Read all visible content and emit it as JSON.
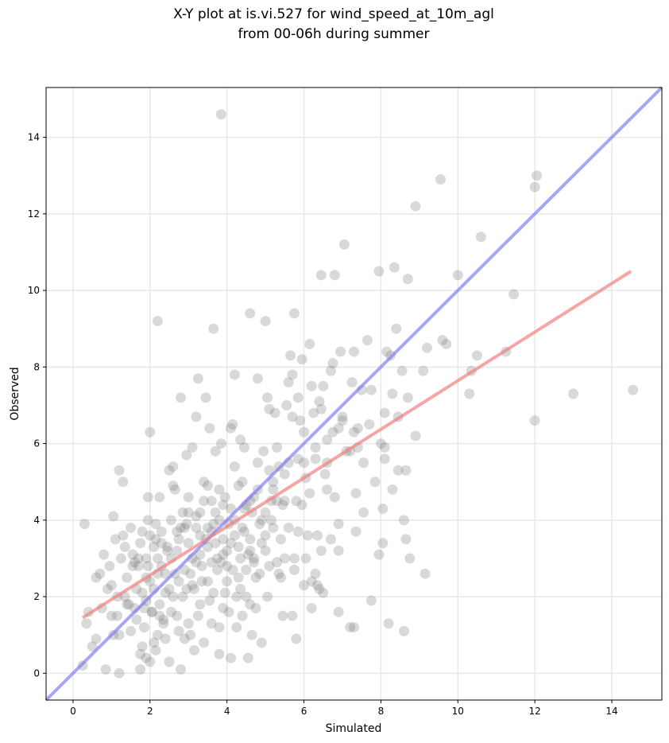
{
  "chart_data": {
    "type": "scatter",
    "title_lines": [
      "X-Y plot at is.vi.527 for wind_speed_at_10m_agl",
      "from 00-06h during summer"
    ],
    "xlabel": "Simulated",
    "ylabel": "Observed",
    "xlim": [
      -0.7,
      15.3
    ],
    "ylim": [
      -0.7,
      15.3
    ],
    "xticks": [
      0,
      2,
      4,
      6,
      8,
      10,
      12,
      14
    ],
    "yticks": [
      0,
      2,
      4,
      6,
      8,
      10,
      12,
      14
    ],
    "grid": true,
    "point_color": "#808080",
    "identity_line": {
      "color": "#7777ee",
      "from": [
        -0.7,
        -0.7
      ],
      "to": [
        15.3,
        15.3
      ]
    },
    "fit_line": {
      "color": "#f08080",
      "from": [
        0.25,
        1.45
      ],
      "to": [
        14.5,
        10.5
      ]
    },
    "points": [
      [
        3.85,
        14.6
      ],
      [
        2.2,
        9.2
      ],
      [
        3.65,
        9.0
      ],
      [
        4.6,
        9.4
      ],
      [
        5.0,
        9.2
      ],
      [
        5.75,
        9.4
      ],
      [
        6.45,
        10.4
      ],
      [
        6.8,
        10.4
      ],
      [
        7.05,
        11.2
      ],
      [
        7.95,
        10.5
      ],
      [
        8.35,
        10.6
      ],
      [
        8.7,
        10.3
      ],
      [
        8.9,
        12.2
      ],
      [
        9.55,
        12.9
      ],
      [
        10.0,
        10.4
      ],
      [
        10.6,
        11.4
      ],
      [
        12.0,
        12.7
      ],
      [
        12.05,
        13.0
      ],
      [
        11.45,
        9.9
      ],
      [
        11.25,
        8.4
      ],
      [
        10.35,
        7.9
      ],
      [
        10.3,
        7.3
      ],
      [
        13.0,
        7.3
      ],
      [
        14.55,
        7.4
      ],
      [
        12.0,
        6.6
      ],
      [
        9.2,
        8.5
      ],
      [
        9.6,
        8.7
      ],
      [
        9.7,
        8.6
      ],
      [
        10.5,
        8.3
      ],
      [
        9.1,
        7.9
      ],
      [
        8.9,
        6.2
      ],
      [
        9.15,
        2.6
      ],
      [
        8.6,
        1.1
      ],
      [
        8.2,
        1.3
      ],
      [
        7.75,
        1.9
      ],
      [
        7.2,
        1.2
      ],
      [
        7.3,
        1.2
      ],
      [
        6.9,
        1.6
      ],
      [
        0.3,
        3.9
      ],
      [
        0.35,
        1.3
      ],
      [
        0.4,
        1.6
      ],
      [
        0.25,
        0.2
      ],
      [
        0.5,
        0.7
      ],
      [
        0.6,
        0.9
      ],
      [
        0.6,
        2.5
      ],
      [
        0.7,
        2.6
      ],
      [
        0.75,
        1.7
      ],
      [
        0.8,
        3.1
      ],
      [
        0.9,
        2.2
      ],
      [
        0.85,
        0.1
      ],
      [
        0.95,
        2.8
      ],
      [
        1.0,
        2.3
      ],
      [
        1.05,
        4.1
      ],
      [
        1.05,
        1.0
      ],
      [
        1.1,
        3.5
      ],
      [
        1.15,
        1.5
      ],
      [
        1.2,
        1.0
      ],
      [
        1.2,
        0.0
      ],
      [
        1.2,
        5.3
      ],
      [
        1.3,
        5.0
      ],
      [
        1.3,
        3.6
      ],
      [
        1.35,
        3.3
      ],
      [
        1.35,
        2.0
      ],
      [
        1.4,
        1.8
      ],
      [
        1.45,
        1.8
      ],
      [
        1.5,
        3.8
      ],
      [
        1.55,
        3.1
      ],
      [
        1.55,
        2.8
      ],
      [
        1.6,
        1.7
      ],
      [
        1.65,
        1.4
      ],
      [
        1.7,
        2.8
      ],
      [
        1.75,
        0.5
      ],
      [
        1.75,
        0.1
      ],
      [
        1.8,
        3.7
      ],
      [
        1.85,
        1.7
      ],
      [
        1.9,
        3.0
      ],
      [
        1.9,
        2.5
      ],
      [
        1.95,
        4.6
      ],
      [
        1.95,
        4.0
      ],
      [
        2.0,
        3.6
      ],
      [
        2.0,
        6.3
      ],
      [
        2.0,
        0.3
      ],
      [
        2.05,
        1.6
      ],
      [
        2.1,
        2.2
      ],
      [
        2.1,
        0.8
      ],
      [
        2.15,
        3.5
      ],
      [
        2.2,
        3.0
      ],
      [
        2.2,
        1.0
      ],
      [
        2.25,
        1.8
      ],
      [
        2.3,
        3.7
      ],
      [
        2.3,
        2.8
      ],
      [
        2.35,
        1.4
      ],
      [
        2.4,
        2.6
      ],
      [
        2.4,
        0.9
      ],
      [
        2.45,
        3.3
      ],
      [
        2.5,
        5.3
      ],
      [
        2.5,
        0.3
      ],
      [
        2.55,
        4.0
      ],
      [
        2.6,
        5.4
      ],
      [
        2.6,
        2.0
      ],
      [
        2.65,
        4.8
      ],
      [
        2.7,
        1.5
      ],
      [
        2.7,
        3.2
      ],
      [
        2.75,
        2.4
      ],
      [
        2.8,
        7.2
      ],
      [
        2.8,
        0.1
      ],
      [
        2.85,
        4.2
      ],
      [
        2.9,
        3.8
      ],
      [
        2.95,
        5.7
      ],
      [
        2.95,
        2.2
      ],
      [
        3.0,
        4.6
      ],
      [
        3.0,
        1.3
      ],
      [
        3.05,
        2.6
      ],
      [
        3.1,
        5.9
      ],
      [
        3.15,
        0.6
      ],
      [
        3.2,
        3.8
      ],
      [
        3.2,
        6.7
      ],
      [
        3.25,
        7.7
      ],
      [
        3.3,
        4.2
      ],
      [
        3.3,
        1.8
      ],
      [
        3.35,
        2.8
      ],
      [
        3.4,
        5.0
      ],
      [
        3.45,
        7.2
      ],
      [
        3.5,
        3.3
      ],
      [
        3.5,
        2.4
      ],
      [
        3.55,
        6.4
      ],
      [
        3.6,
        4.5
      ],
      [
        3.6,
        1.3
      ],
      [
        3.65,
        3.9
      ],
      [
        3.7,
        5.8
      ],
      [
        3.75,
        2.7
      ],
      [
        3.8,
        4.8
      ],
      [
        3.8,
        0.5
      ],
      [
        3.85,
        6.0
      ],
      [
        3.9,
        3.5
      ],
      [
        3.9,
        1.7
      ],
      [
        3.95,
        4.6
      ],
      [
        4.0,
        2.4
      ],
      [
        4.05,
        3.9
      ],
      [
        4.1,
        6.4
      ],
      [
        4.1,
        0.4
      ],
      [
        4.15,
        6.5
      ],
      [
        4.2,
        7.8
      ],
      [
        4.2,
        5.4
      ],
      [
        4.25,
        2.0
      ],
      [
        4.3,
        4.9
      ],
      [
        4.35,
        6.1
      ],
      [
        4.35,
        3.0
      ],
      [
        4.4,
        1.5
      ],
      [
        4.45,
        5.9
      ],
      [
        4.45,
        4.3
      ],
      [
        4.5,
        2.7
      ],
      [
        4.55,
        0.4
      ],
      [
        4.6,
        4.5
      ],
      [
        4.6,
        3.5
      ],
      [
        4.65,
        1.0
      ],
      [
        4.7,
        4.6
      ],
      [
        4.75,
        2.5
      ],
      [
        4.8,
        7.7
      ],
      [
        4.8,
        5.5
      ],
      [
        4.85,
        3.9
      ],
      [
        4.9,
        0.8
      ],
      [
        4.95,
        5.8
      ],
      [
        5.0,
        3.6
      ],
      [
        5.05,
        7.2
      ],
      [
        5.1,
        6.9
      ],
      [
        5.1,
        2.8
      ],
      [
        5.15,
        4.5
      ],
      [
        5.2,
        5.0
      ],
      [
        5.25,
        6.8
      ],
      [
        5.3,
        2.9
      ],
      [
        5.3,
        5.9
      ],
      [
        5.35,
        2.6
      ],
      [
        5.4,
        3.5
      ],
      [
        5.45,
        1.5
      ],
      [
        5.5,
        5.2
      ],
      [
        5.5,
        4.5
      ],
      [
        5.55,
        7.0
      ],
      [
        5.6,
        7.6
      ],
      [
        5.65,
        8.3
      ],
      [
        5.7,
        7.8
      ],
      [
        5.7,
        1.5
      ],
      [
        5.75,
        3.0
      ],
      [
        5.8,
        4.5
      ],
      [
        5.8,
        0.9
      ],
      [
        5.85,
        7.2
      ],
      [
        5.9,
        6.6
      ],
      [
        5.95,
        8.2
      ],
      [
        6.0,
        5.5
      ],
      [
        6.0,
        2.3
      ],
      [
        6.05,
        5.1
      ],
      [
        6.1,
        3.6
      ],
      [
        6.15,
        8.6
      ],
      [
        6.2,
        7.5
      ],
      [
        6.2,
        1.7
      ],
      [
        6.25,
        6.8
      ],
      [
        6.3,
        2.6
      ],
      [
        6.3,
        5.9
      ],
      [
        6.35,
        3.6
      ],
      [
        6.4,
        7.1
      ],
      [
        6.4,
        2.2
      ],
      [
        6.45,
        3.2
      ],
      [
        6.5,
        7.5
      ],
      [
        6.55,
        5.2
      ],
      [
        6.6,
        6.1
      ],
      [
        6.6,
        4.8
      ],
      [
        6.7,
        7.9
      ],
      [
        6.75,
        8.1
      ],
      [
        6.8,
        4.6
      ],
      [
        6.9,
        3.2
      ],
      [
        6.9,
        3.9
      ],
      [
        6.95,
        8.4
      ],
      [
        7.0,
        6.7
      ],
      [
        7.0,
        6.6
      ],
      [
        7.2,
        5.8
      ],
      [
        7.25,
        7.6
      ],
      [
        7.3,
        8.4
      ],
      [
        7.3,
        6.3
      ],
      [
        7.35,
        4.7
      ],
      [
        7.35,
        3.7
      ],
      [
        7.4,
        6.4
      ],
      [
        7.5,
        7.4
      ],
      [
        7.55,
        5.5
      ],
      [
        7.55,
        4.2
      ],
      [
        7.65,
        8.7
      ],
      [
        7.75,
        7.4
      ],
      [
        7.85,
        5.0
      ],
      [
        7.95,
        3.1
      ],
      [
        8.05,
        4.3
      ],
      [
        8.05,
        3.4
      ],
      [
        8.1,
        6.8
      ],
      [
        8.1,
        5.6
      ],
      [
        8.1,
        5.9
      ],
      [
        8.15,
        8.4
      ],
      [
        8.25,
        8.3
      ],
      [
        8.3,
        7.3
      ],
      [
        8.3,
        4.8
      ],
      [
        8.4,
        9.0
      ],
      [
        8.45,
        6.7
      ],
      [
        8.45,
        5.3
      ],
      [
        8.55,
        7.9
      ],
      [
        8.6,
        4.0
      ],
      [
        8.65,
        3.5
      ],
      [
        8.65,
        5.3
      ],
      [
        8.7,
        7.2
      ],
      [
        8.75,
        3.0
      ],
      [
        1.6,
        2.9
      ],
      [
        1.7,
        3.0
      ],
      [
        1.8,
        2.1
      ],
      [
        1.85,
        1.2
      ],
      [
        1.9,
        0.4
      ],
      [
        1.95,
        2.8
      ],
      [
        2.05,
        1.6
      ],
      [
        2.1,
        3.3
      ],
      [
        2.15,
        0.6
      ],
      [
        2.2,
        2.6
      ],
      [
        2.25,
        4.6
      ],
      [
        2.3,
        3.4
      ],
      [
        2.35,
        1.3
      ],
      [
        2.45,
        3.2
      ],
      [
        2.5,
        2.2
      ],
      [
        2.55,
        1.6
      ],
      [
        2.6,
        4.9
      ],
      [
        2.7,
        3.7
      ],
      [
        2.75,
        1.1
      ],
      [
        2.8,
        3.8
      ],
      [
        2.85,
        2.0
      ],
      [
        2.9,
        0.9
      ],
      [
        2.95,
        3.9
      ],
      [
        3.0,
        4.2
      ],
      [
        3.05,
        1.0
      ],
      [
        3.1,
        3.0
      ],
      [
        3.15,
        2.2
      ],
      [
        3.2,
        4.1
      ],
      [
        3.25,
        1.5
      ],
      [
        3.3,
        3.1
      ],
      [
        3.35,
        2.4
      ],
      [
        3.4,
        0.8
      ],
      [
        3.45,
        3.5
      ],
      [
        3.5,
        4.9
      ],
      [
        3.55,
        1.9
      ],
      [
        3.6,
        3.7
      ],
      [
        3.65,
        2.1
      ],
      [
        3.7,
        4.2
      ],
      [
        3.75,
        3.0
      ],
      [
        3.8,
        1.2
      ],
      [
        3.85,
        2.9
      ],
      [
        3.9,
        4.4
      ],
      [
        3.95,
        2.1
      ],
      [
        4.0,
        3.2
      ],
      [
        4.05,
        1.6
      ],
      [
        4.1,
        4.3
      ],
      [
        4.15,
        2.7
      ],
      [
        4.2,
        3.6
      ],
      [
        4.25,
        1.2
      ],
      [
        4.3,
        3.3
      ],
      [
        4.35,
        2.2
      ],
      [
        4.4,
        5.0
      ],
      [
        4.45,
        3.7
      ],
      [
        4.5,
        2.0
      ],
      [
        4.55,
        3.1
      ],
      [
        4.6,
        1.8
      ],
      [
        4.65,
        4.2
      ],
      [
        4.7,
        3.0
      ],
      [
        4.75,
        1.7
      ],
      [
        4.85,
        2.6
      ],
      [
        4.9,
        4.0
      ],
      [
        5.0,
        3.2
      ],
      [
        5.05,
        2.0
      ],
      [
        5.15,
        4.0
      ],
      [
        5.2,
        3.8
      ],
      [
        5.3,
        4.5
      ],
      [
        5.4,
        2.5
      ],
      [
        5.5,
        3.0
      ],
      [
        5.6,
        3.8
      ],
      [
        5.75,
        2.7
      ],
      [
        5.85,
        3.7
      ],
      [
        5.95,
        4.4
      ],
      [
        6.05,
        3.0
      ],
      [
        6.2,
        2.4
      ],
      [
        6.35,
        2.3
      ],
      [
        6.5,
        2.1
      ],
      [
        6.7,
        3.5
      ],
      [
        1.0,
        1.5
      ],
      [
        1.15,
        2.0
      ],
      [
        1.25,
        3.0
      ],
      [
        1.4,
        2.5
      ],
      [
        1.5,
        1.1
      ],
      [
        1.65,
        2.2
      ],
      [
        1.75,
        3.4
      ],
      [
        1.8,
        0.7
      ],
      [
        1.9,
        1.9
      ],
      [
        2.0,
        2.4
      ],
      [
        2.15,
        3.9
      ],
      [
        2.25,
        1.5
      ],
      [
        2.4,
        2.1
      ],
      [
        2.55,
        3.0
      ],
      [
        2.65,
        2.6
      ],
      [
        2.75,
        3.5
      ],
      [
        2.9,
        2.7
      ],
      [
        3.0,
        3.4
      ],
      [
        3.1,
        2.3
      ],
      [
        3.2,
        2.9
      ],
      [
        3.3,
        3.6
      ],
      [
        3.4,
        4.5
      ],
      [
        3.5,
        3.8
      ],
      [
        3.6,
        2.9
      ],
      [
        3.7,
        3.4
      ],
      [
        3.8,
        4.0
      ],
      [
        3.9,
        3.1
      ],
      [
        4.0,
        2.8
      ],
      [
        4.1,
        3.4
      ],
      [
        4.2,
        4.0
      ],
      [
        4.3,
        2.5
      ],
      [
        4.4,
        3.8
      ],
      [
        4.5,
        4.4
      ],
      [
        4.6,
        3.2
      ],
      [
        4.7,
        2.9
      ],
      [
        4.8,
        4.8
      ],
      [
        4.9,
        3.4
      ],
      [
        5.0,
        4.2
      ],
      [
        5.1,
        5.3
      ],
      [
        5.2,
        4.8
      ],
      [
        5.35,
        5.4
      ],
      [
        5.45,
        4.4
      ],
      [
        5.6,
        5.5
      ],
      [
        5.7,
        6.7
      ],
      [
        5.85,
        5.6
      ],
      [
        6.0,
        6.3
      ],
      [
        6.15,
        4.7
      ],
      [
        6.3,
        5.6
      ],
      [
        6.45,
        6.9
      ],
      [
        6.6,
        5.5
      ],
      [
        6.75,
        6.3
      ],
      [
        6.9,
        6.4
      ],
      [
        7.1,
        5.8
      ],
      [
        7.4,
        5.9
      ],
      [
        7.7,
        6.5
      ],
      [
        8.0,
        6.0
      ]
    ]
  }
}
